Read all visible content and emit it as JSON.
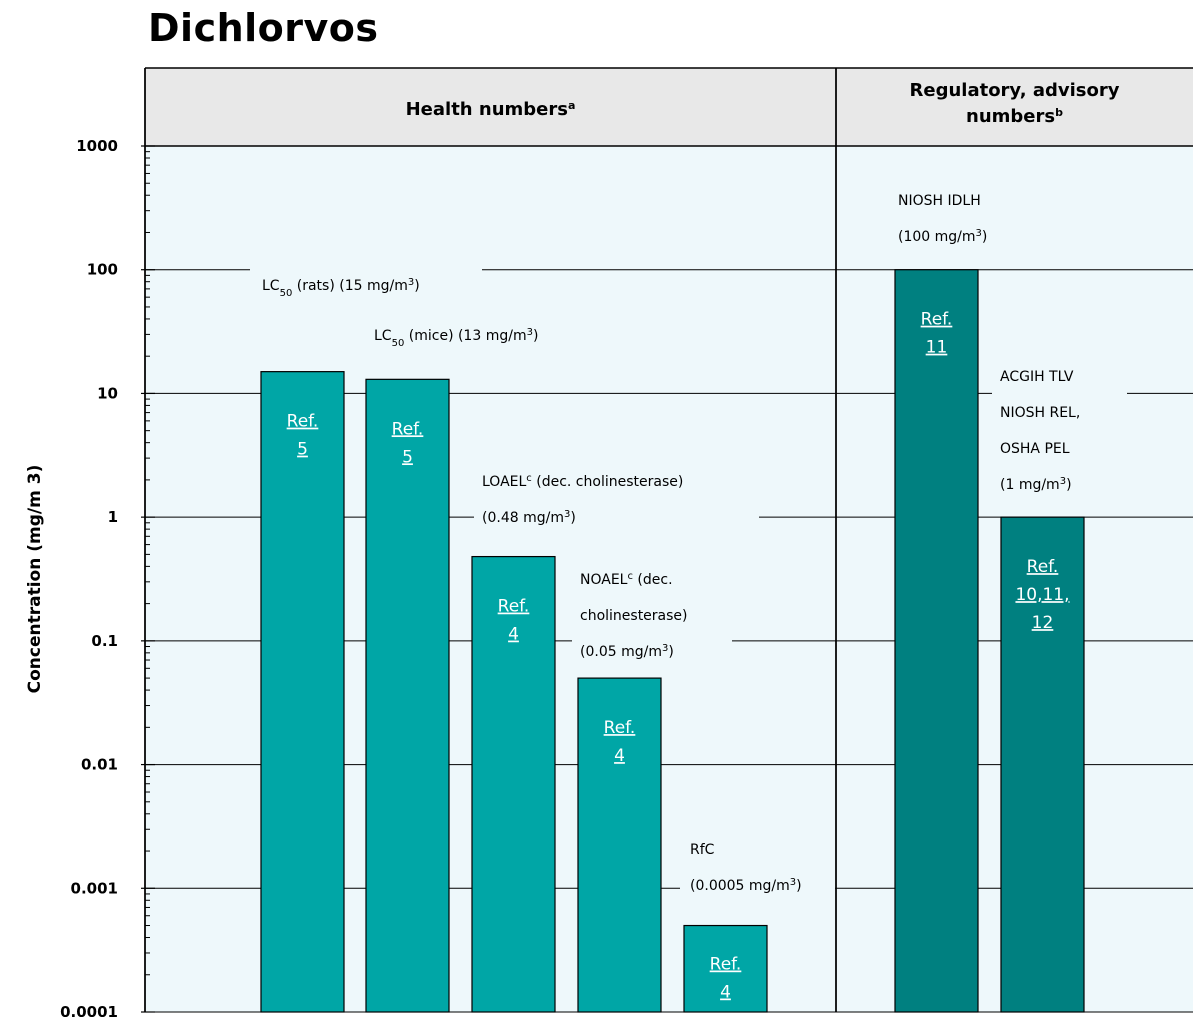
{
  "title": "Dichlorvos",
  "colors": {
    "panel_bg": "#eef8fb",
    "header_bg": "#e8e8e8",
    "health_bar": "#00a6a6",
    "regulatory_bar": "#008080"
  },
  "chart_data": {
    "type": "bar",
    "scale": "log",
    "ylabel": "Concentration (mg/m 3)",
    "ylim": [
      0.0001,
      1000
    ],
    "y_ticks": [
      "1000",
      "100",
      "10",
      "1",
      "0.1",
      "0.01",
      "0.001",
      "0.0001"
    ],
    "grid": true,
    "groups": [
      {
        "name": "Health numbers",
        "superscript": "a"
      },
      {
        "name": "Regulatory, advisory numbers",
        "superscript": "b"
      }
    ],
    "bars": [
      {
        "group": 0,
        "value": 15,
        "ref": [
          "Ref.",
          "5"
        ],
        "label": [
          {
            "t": "LC"
          },
          {
            "t": "50",
            "sub": true
          },
          {
            "t": " (rats) (15 mg/m"
          },
          {
            "t": "3",
            "sup": true
          },
          {
            "t": ")"
          }
        ]
      },
      {
        "group": 0,
        "value": 13,
        "ref": [
          "Ref.",
          "5"
        ],
        "label": [
          {
            "t": "LC"
          },
          {
            "t": "50",
            "sub": true
          },
          {
            "t": " (mice) (13 mg/m"
          },
          {
            "t": "3",
            "sup": true
          },
          {
            "t": ")"
          }
        ]
      },
      {
        "group": 0,
        "value": 0.48,
        "ref": [
          "Ref.",
          "4"
        ],
        "label": [
          {
            "t": "LOAEL"
          },
          {
            "t": "c",
            "sup": true
          },
          {
            "t": " (dec. cholinesterase)"
          },
          {
            "br": true
          },
          {
            "t": "(0.48 mg/m"
          },
          {
            "t": "3",
            "sup": true
          },
          {
            "t": ")"
          }
        ]
      },
      {
        "group": 0,
        "value": 0.05,
        "ref": [
          "Ref.",
          "4"
        ],
        "label": [
          {
            "t": "NOAEL"
          },
          {
            "t": "c",
            "sup": true
          },
          {
            "t": " (dec."
          },
          {
            "br": true
          },
          {
            "t": "cholinesterase)"
          },
          {
            "br": true
          },
          {
            "t": "(0.05 mg/m"
          },
          {
            "t": "3",
            "sup": true
          },
          {
            "t": ")"
          }
        ]
      },
      {
        "group": 0,
        "value": 0.0005,
        "ref": [
          "Ref.",
          "4"
        ],
        "label": [
          {
            "t": "RfC"
          },
          {
            "br": true
          },
          {
            "t": "(0.0005 mg/m"
          },
          {
            "t": "3",
            "sup": true
          },
          {
            "t": ")"
          }
        ]
      },
      {
        "group": 1,
        "value": 100,
        "ref": [
          "Ref.",
          "11"
        ],
        "label": [
          {
            "t": "NIOSH IDLH"
          },
          {
            "br": true
          },
          {
            "t": "(100 mg/m"
          },
          {
            "t": "3",
            "sup": true
          },
          {
            "t": ")"
          }
        ]
      },
      {
        "group": 1,
        "value": 1,
        "ref": [
          "Ref.",
          "10,11,",
          "12"
        ],
        "label": [
          {
            "t": "ACGIH TLV"
          },
          {
            "br": true
          },
          {
            "t": "NIOSH REL,"
          },
          {
            "br": true
          },
          {
            "t": "OSHA PEL"
          },
          {
            "br": true
          },
          {
            "t": "(1 mg/m"
          },
          {
            "t": "3",
            "sup": true
          },
          {
            "t": ")"
          }
        ]
      }
    ]
  }
}
